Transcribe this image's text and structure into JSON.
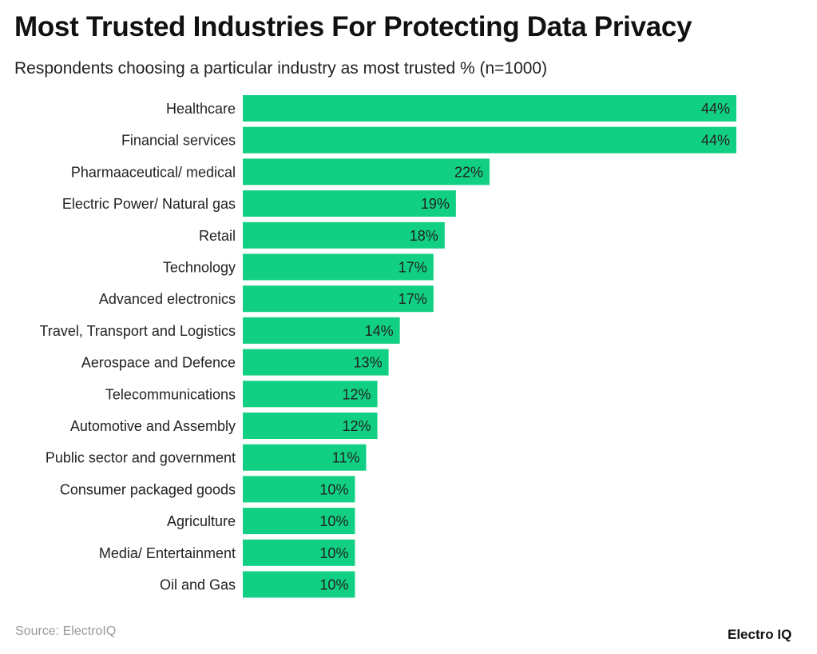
{
  "chart_data": {
    "type": "bar",
    "orientation": "horizontal",
    "title": "Most Trusted Industries For Protecting Data Privacy",
    "subtitle": "Respondents choosing a particular industry as most trusted % (n=1000)",
    "categories": [
      "Healthcare",
      "Financial services",
      "Pharmaaceutical/ medical",
      "Electric Power/ Natural gas",
      "Retail",
      "Technology",
      "Advanced electronics",
      "Travel, Transport and Logistics",
      "Aerospace and Defence",
      "Telecommunications",
      "Automotive and Assembly",
      "Public sector and government",
      "Consumer packaged goods",
      "Agriculture",
      "Media/ Entertainment",
      "Oil and Gas"
    ],
    "values": [
      44,
      44,
      22,
      19,
      18,
      17,
      17,
      14,
      13,
      12,
      12,
      11,
      10,
      10,
      10,
      10
    ],
    "value_suffix": "%",
    "xlim": [
      0,
      44
    ],
    "grid": false,
    "bar_color": "#11d083"
  },
  "footer": {
    "source": "Source: ElectroIQ",
    "logo": "Electro IQ"
  }
}
